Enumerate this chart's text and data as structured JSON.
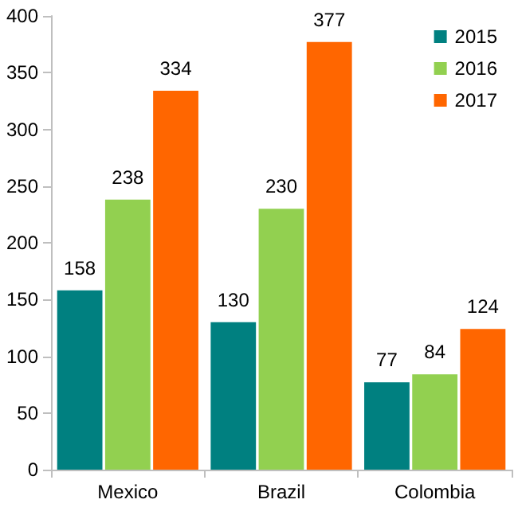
{
  "chart_data": {
    "type": "bar",
    "categories": [
      "Mexico",
      "Brazil",
      "Colombia"
    ],
    "series": [
      {
        "name": "2015",
        "color": "#008080",
        "values": [
          158,
          130,
          77
        ]
      },
      {
        "name": "2016",
        "color": "#92d050",
        "values": [
          238,
          230,
          84
        ]
      },
      {
        "name": "2017",
        "color": "#ff6600",
        "values": [
          334,
          377,
          124
        ]
      }
    ],
    "ylim": [
      0,
      400
    ],
    "yticks": [
      0,
      50,
      100,
      150,
      200,
      250,
      300,
      350,
      400
    ],
    "grid": false,
    "legend": "top right",
    "data_labels": true
  }
}
